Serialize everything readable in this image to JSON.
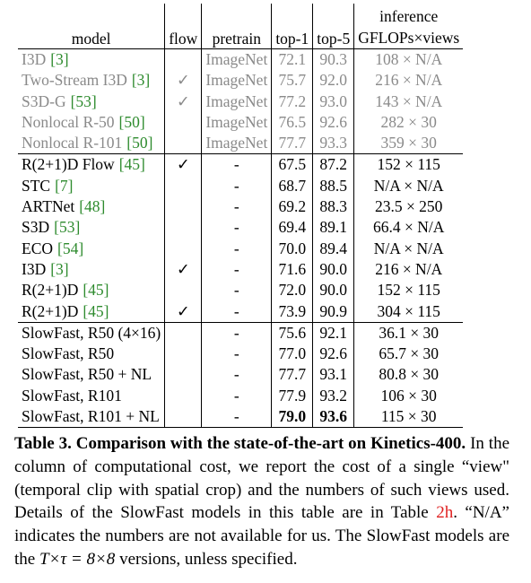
{
  "table": {
    "headers": {
      "model": "model",
      "flow": "flow",
      "pretrain": "pretrain",
      "top1": "top-1",
      "top5": "top-5",
      "inference": [
        "inference",
        "GFLOPs×views"
      ]
    },
    "groups": [
      {
        "muted": true,
        "rows": [
          {
            "model": "I3D",
            "ref": "[3]",
            "flow": null,
            "pretrain": "ImageNet",
            "top1": "72.1",
            "top5": "90.3",
            "inference": "108 × N/A"
          },
          {
            "model": "Two-Stream I3D",
            "ref": "[3]",
            "flow": "✓",
            "pretrain": "ImageNet",
            "top1": "75.7",
            "top5": "92.0",
            "inference": "216 × N/A"
          },
          {
            "model": "S3D-G",
            "ref": "[53]",
            "flow": "✓",
            "pretrain": "ImageNet",
            "top1": "77.2",
            "top5": "93.0",
            "inference": "143 × N/A"
          },
          {
            "model": "Nonlocal R-50",
            "ref": "[50]",
            "flow": null,
            "pretrain": "ImageNet",
            "top1": "76.5",
            "top5": "92.6",
            "inference": "282 × 30"
          },
          {
            "model": "Nonlocal R-101",
            "ref": "[50]",
            "flow": null,
            "pretrain": "ImageNet",
            "top1": "77.7",
            "top5": "93.3",
            "inference": "359 × 30"
          }
        ]
      },
      {
        "muted": false,
        "rows": [
          {
            "model": "R(2+1)D Flow",
            "ref": "[45]",
            "flow": "✓",
            "pretrain": "-",
            "top1": "67.5",
            "top5": "87.2",
            "inference": "152 × 115"
          },
          {
            "model": "STC",
            "ref": "[7]",
            "flow": null,
            "pretrain": "-",
            "top1": "68.7",
            "top5": "88.5",
            "inference": "N/A × N/A"
          },
          {
            "model": "ARTNet",
            "ref": "[48]",
            "flow": null,
            "pretrain": "-",
            "top1": "69.2",
            "top5": "88.3",
            "inference": "23.5 × 250"
          },
          {
            "model": "S3D",
            "ref": "[53]",
            "flow": null,
            "pretrain": "-",
            "top1": "69.4",
            "top5": "89.1",
            "inference": "66.4 × N/A"
          },
          {
            "model": "ECO",
            "ref": "[54]",
            "flow": null,
            "pretrain": "-",
            "top1": "70.0",
            "top5": "89.4",
            "inference": "N/A × N/A"
          },
          {
            "model": "I3D",
            "ref": "[3]",
            "flow": "✓",
            "pretrain": "-",
            "top1": "71.6",
            "top5": "90.0",
            "inference": "216 × N/A"
          },
          {
            "model": "R(2+1)D",
            "ref": "[45]",
            "flow": null,
            "pretrain": "-",
            "top1": "72.0",
            "top5": "90.0",
            "inference": "152 × 115"
          },
          {
            "model": "R(2+1)D",
            "ref": "[45]",
            "flow": "✓",
            "pretrain": "-",
            "top1": "73.9",
            "top5": "90.9",
            "inference": "304 × 115"
          }
        ]
      },
      {
        "muted": false,
        "rows": [
          {
            "model": "SlowFast, R50 (4×16)",
            "ref": null,
            "flow": null,
            "pretrain": "-",
            "top1": "75.6",
            "top5": "92.1",
            "inference": "36.1 × 30"
          },
          {
            "model": "SlowFast, R50",
            "ref": null,
            "flow": null,
            "pretrain": "-",
            "top1": "77.0",
            "top5": "92.6",
            "inference": "65.7 × 30"
          },
          {
            "model": "SlowFast, R50 + NL",
            "ref": null,
            "flow": null,
            "pretrain": "-",
            "top1": "77.7",
            "top5": "93.1",
            "inference": "80.8 × 30"
          },
          {
            "model": "SlowFast, R101",
            "ref": null,
            "flow": null,
            "pretrain": "-",
            "top1": "77.9",
            "top5": "93.2",
            "inference": "106 × 30"
          },
          {
            "model": "SlowFast, R101 + NL",
            "ref": null,
            "flow": null,
            "pretrain": "-",
            "top1": "79.0",
            "top5": "93.6",
            "inference": "115 × 30",
            "bold": [
              "top1",
              "top5"
            ]
          }
        ]
      }
    ]
  },
  "caption": {
    "label": "Table 3.",
    "title": "Comparison with the state-of-the-art on Kinetics-400.",
    "text1": "In the column of computational cost, we report the cost of a single “view\" (temporal clip with spatial crop) and the numbers of such views used. Details of the SlowFast models in this table are in Table",
    "link": "2h",
    "text2": ". “N/A” indicates the numbers are not available for us. The SlowFast models are the",
    "math": "T×τ = 8×8",
    "text3": "versions, unless specified."
  }
}
